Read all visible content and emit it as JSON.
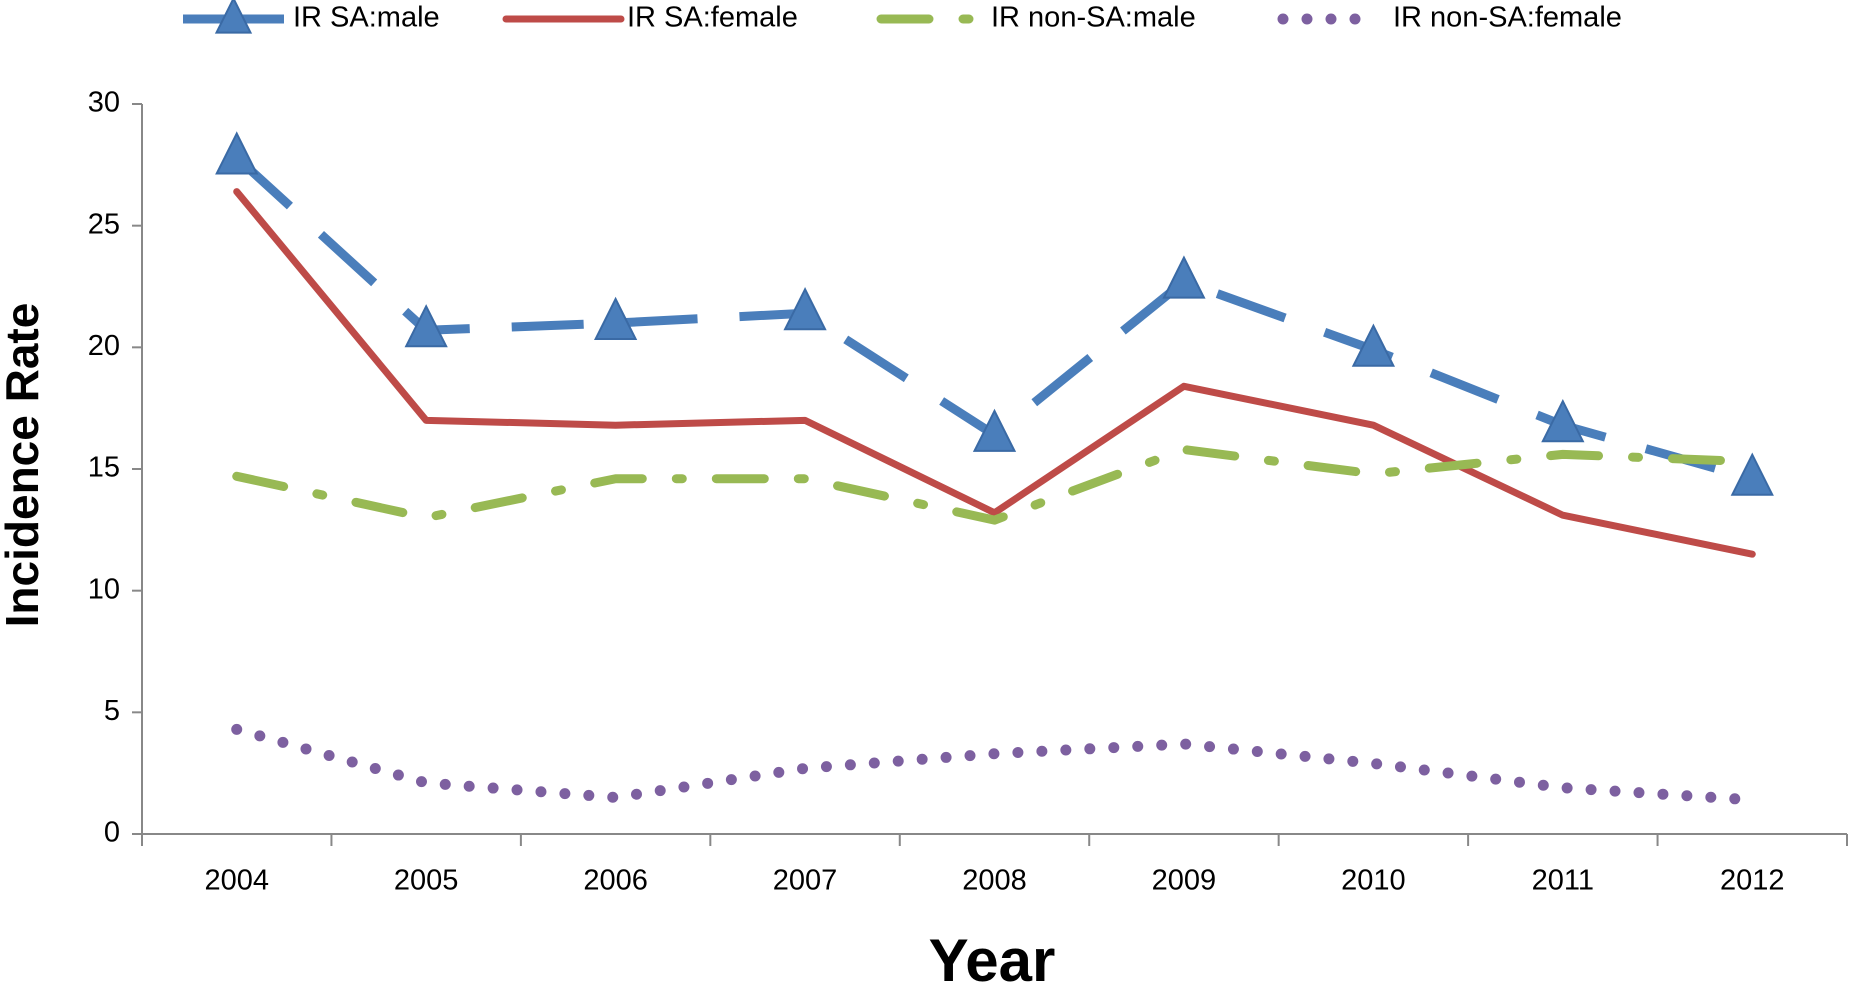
{
  "chart_data": {
    "type": "line",
    "x_label": "Year",
    "y_label": "Incidence Rate",
    "categories": [
      "2004",
      "2005",
      "2006",
      "2007",
      "2008",
      "2009",
      "2010",
      "2011",
      "2012"
    ],
    "series": [
      {
        "name": "IR SA:male",
        "color": "#4a7ebb",
        "style": "dashed",
        "marker": "triangle",
        "values": [
          27.8,
          20.7,
          21.0,
          21.4,
          16.4,
          22.7,
          19.9,
          16.8,
          14.6
        ]
      },
      {
        "name": "IR SA:female",
        "color": "#be4b48",
        "style": "solid",
        "marker": "none",
        "values": [
          26.4,
          17.0,
          16.8,
          17.0,
          13.2,
          18.4,
          16.8,
          13.1,
          11.5
        ]
      },
      {
        "name": "IR non-SA:male",
        "color": "#98b954",
        "style": "dashdot",
        "marker": "none",
        "values": [
          14.7,
          13.0,
          14.6,
          14.6,
          12.9,
          15.8,
          14.8,
          15.6,
          15.3
        ]
      },
      {
        "name": "IR non-SA:female",
        "color": "#7d60a0",
        "style": "dotted",
        "marker": "none",
        "values": [
          4.3,
          2.1,
          1.5,
          2.7,
          3.3,
          3.7,
          2.9,
          1.9,
          1.4
        ]
      }
    ],
    "ylim": [
      0,
      30
    ],
    "yticks": [
      0,
      5,
      10,
      15,
      20,
      25,
      30
    ],
    "grid": false,
    "legend": "top"
  }
}
